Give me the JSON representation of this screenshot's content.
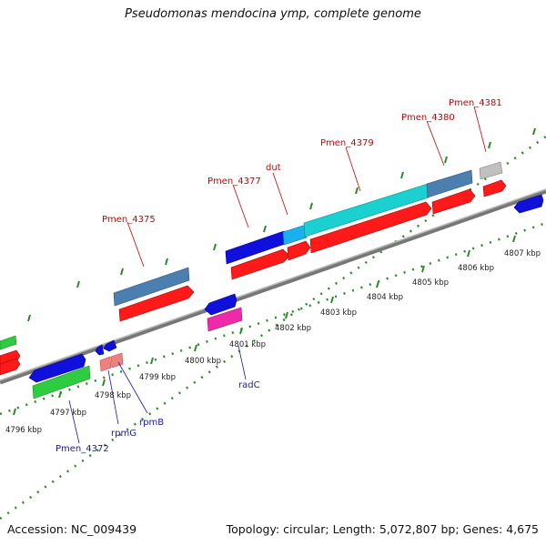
{
  "title": "Pseudomonas mendocina ymp, complete genome",
  "footer": {
    "accession": "Accession: NC_009439",
    "topology": "Topology: circular; Length: 5,072,807 bp; Genes: 4,675"
  },
  "colors": {
    "backbone": "#888888",
    "tick": "#2a8a2a",
    "label_forward": "#cc0000",
    "label_reverse": "#1a1aaa"
  },
  "axis_ticks": [
    {
      "label": "4796 kbp"
    },
    {
      "label": "4797 kbp"
    },
    {
      "label": "4798 kbp"
    },
    {
      "label": "4799 kbp"
    },
    {
      "label": "4800 kbp"
    },
    {
      "label": "4801 kbp"
    },
    {
      "label": "4802 kbp"
    },
    {
      "label": "4803 kbp"
    },
    {
      "label": "4804 kbp"
    },
    {
      "label": "4805 kbp"
    },
    {
      "label": "4806 kbp"
    },
    {
      "label": "4807 kbp"
    }
  ],
  "gene_labels": {
    "forward": [
      "Pmen_4375",
      "Pmen_4377",
      "dut",
      "Pmen_4379",
      "Pmen_4380",
      "Pmen_4381"
    ],
    "reverse": [
      "radC",
      "rpmB",
      "rpmG",
      "Pmen_4372"
    ]
  }
}
